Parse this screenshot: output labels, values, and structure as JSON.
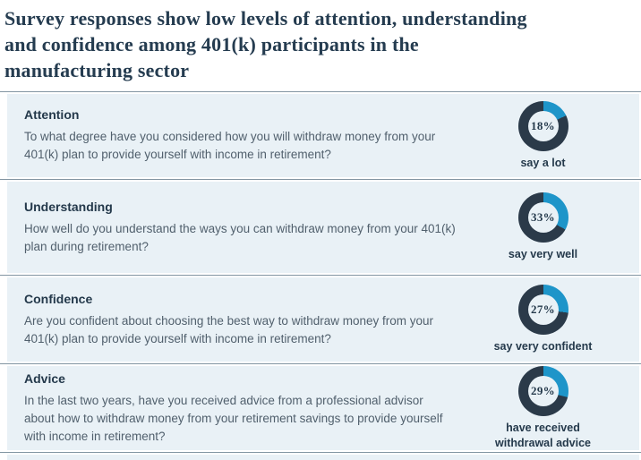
{
  "title_lines": [
    "Survey responses show low levels of attention, understanding",
    "and confidence among 401(k) participants in the",
    "manufacturing sector"
  ],
  "rows": [
    {
      "heading": "Attention",
      "question": "To what degree have you considered how you will withdraw money from your 401(k) plan to provide yourself with income in retirement?",
      "percent": 18,
      "percent_label": "18%",
      "stat_label": "say a lot"
    },
    {
      "heading": "Understanding",
      "question": "How well do you understand the ways you can withdraw money from your 401(k) plan during retirement?",
      "percent": 33,
      "percent_label": "33%",
      "stat_label": "say very well"
    },
    {
      "heading": "Confidence",
      "question": "Are you confident about choosing the best way to withdraw money from your 401(k) plan to provide yourself with income in retirement?",
      "percent": 27,
      "percent_label": "27%",
      "stat_label": "say very confident"
    },
    {
      "heading": "Advice",
      "question": "In the last two years, have you received advice from a professional advisor about how to withdraw money from your retirement savings to provide yourself with income in retirement?",
      "percent": 29,
      "percent_label": "29%",
      "stat_label": "have received withdrawal advice"
    }
  ],
  "colors": {
    "accent": "#1e95c9",
    "donut_dark": "#2b3a49",
    "row_bg": "#e9f1f6",
    "separator": "#8295a2",
    "title": "#253c50",
    "heading": "#24394b",
    "body_text": "#51606d"
  },
  "chart_data": {
    "type": "pie",
    "variant": "donut",
    "title": "Survey responses show low levels of attention, understanding and confidence among 401(k) participants in the manufacturing sector",
    "charts": [
      {
        "category": "Attention",
        "percent": 18,
        "label": "say a lot",
        "slices": [
          {
            "name": "say a lot",
            "value": 18,
            "color": "#1e95c9"
          },
          {
            "name": "other",
            "value": 82,
            "color": "#2b3a49"
          }
        ]
      },
      {
        "category": "Understanding",
        "percent": 33,
        "label": "say very well",
        "slices": [
          {
            "name": "say very well",
            "value": 33,
            "color": "#1e95c9"
          },
          {
            "name": "other",
            "value": 67,
            "color": "#2b3a49"
          }
        ]
      },
      {
        "category": "Confidence",
        "percent": 27,
        "label": "say very confident",
        "slices": [
          {
            "name": "say very confident",
            "value": 27,
            "color": "#1e95c9"
          },
          {
            "name": "other",
            "value": 73,
            "color": "#2b3a49"
          }
        ]
      },
      {
        "category": "Advice",
        "percent": 29,
        "label": "have received withdrawal advice",
        "slices": [
          {
            "name": "have received withdrawal advice",
            "value": 29,
            "color": "#1e95c9"
          },
          {
            "name": "other",
            "value": 71,
            "color": "#2b3a49"
          }
        ]
      }
    ]
  }
}
